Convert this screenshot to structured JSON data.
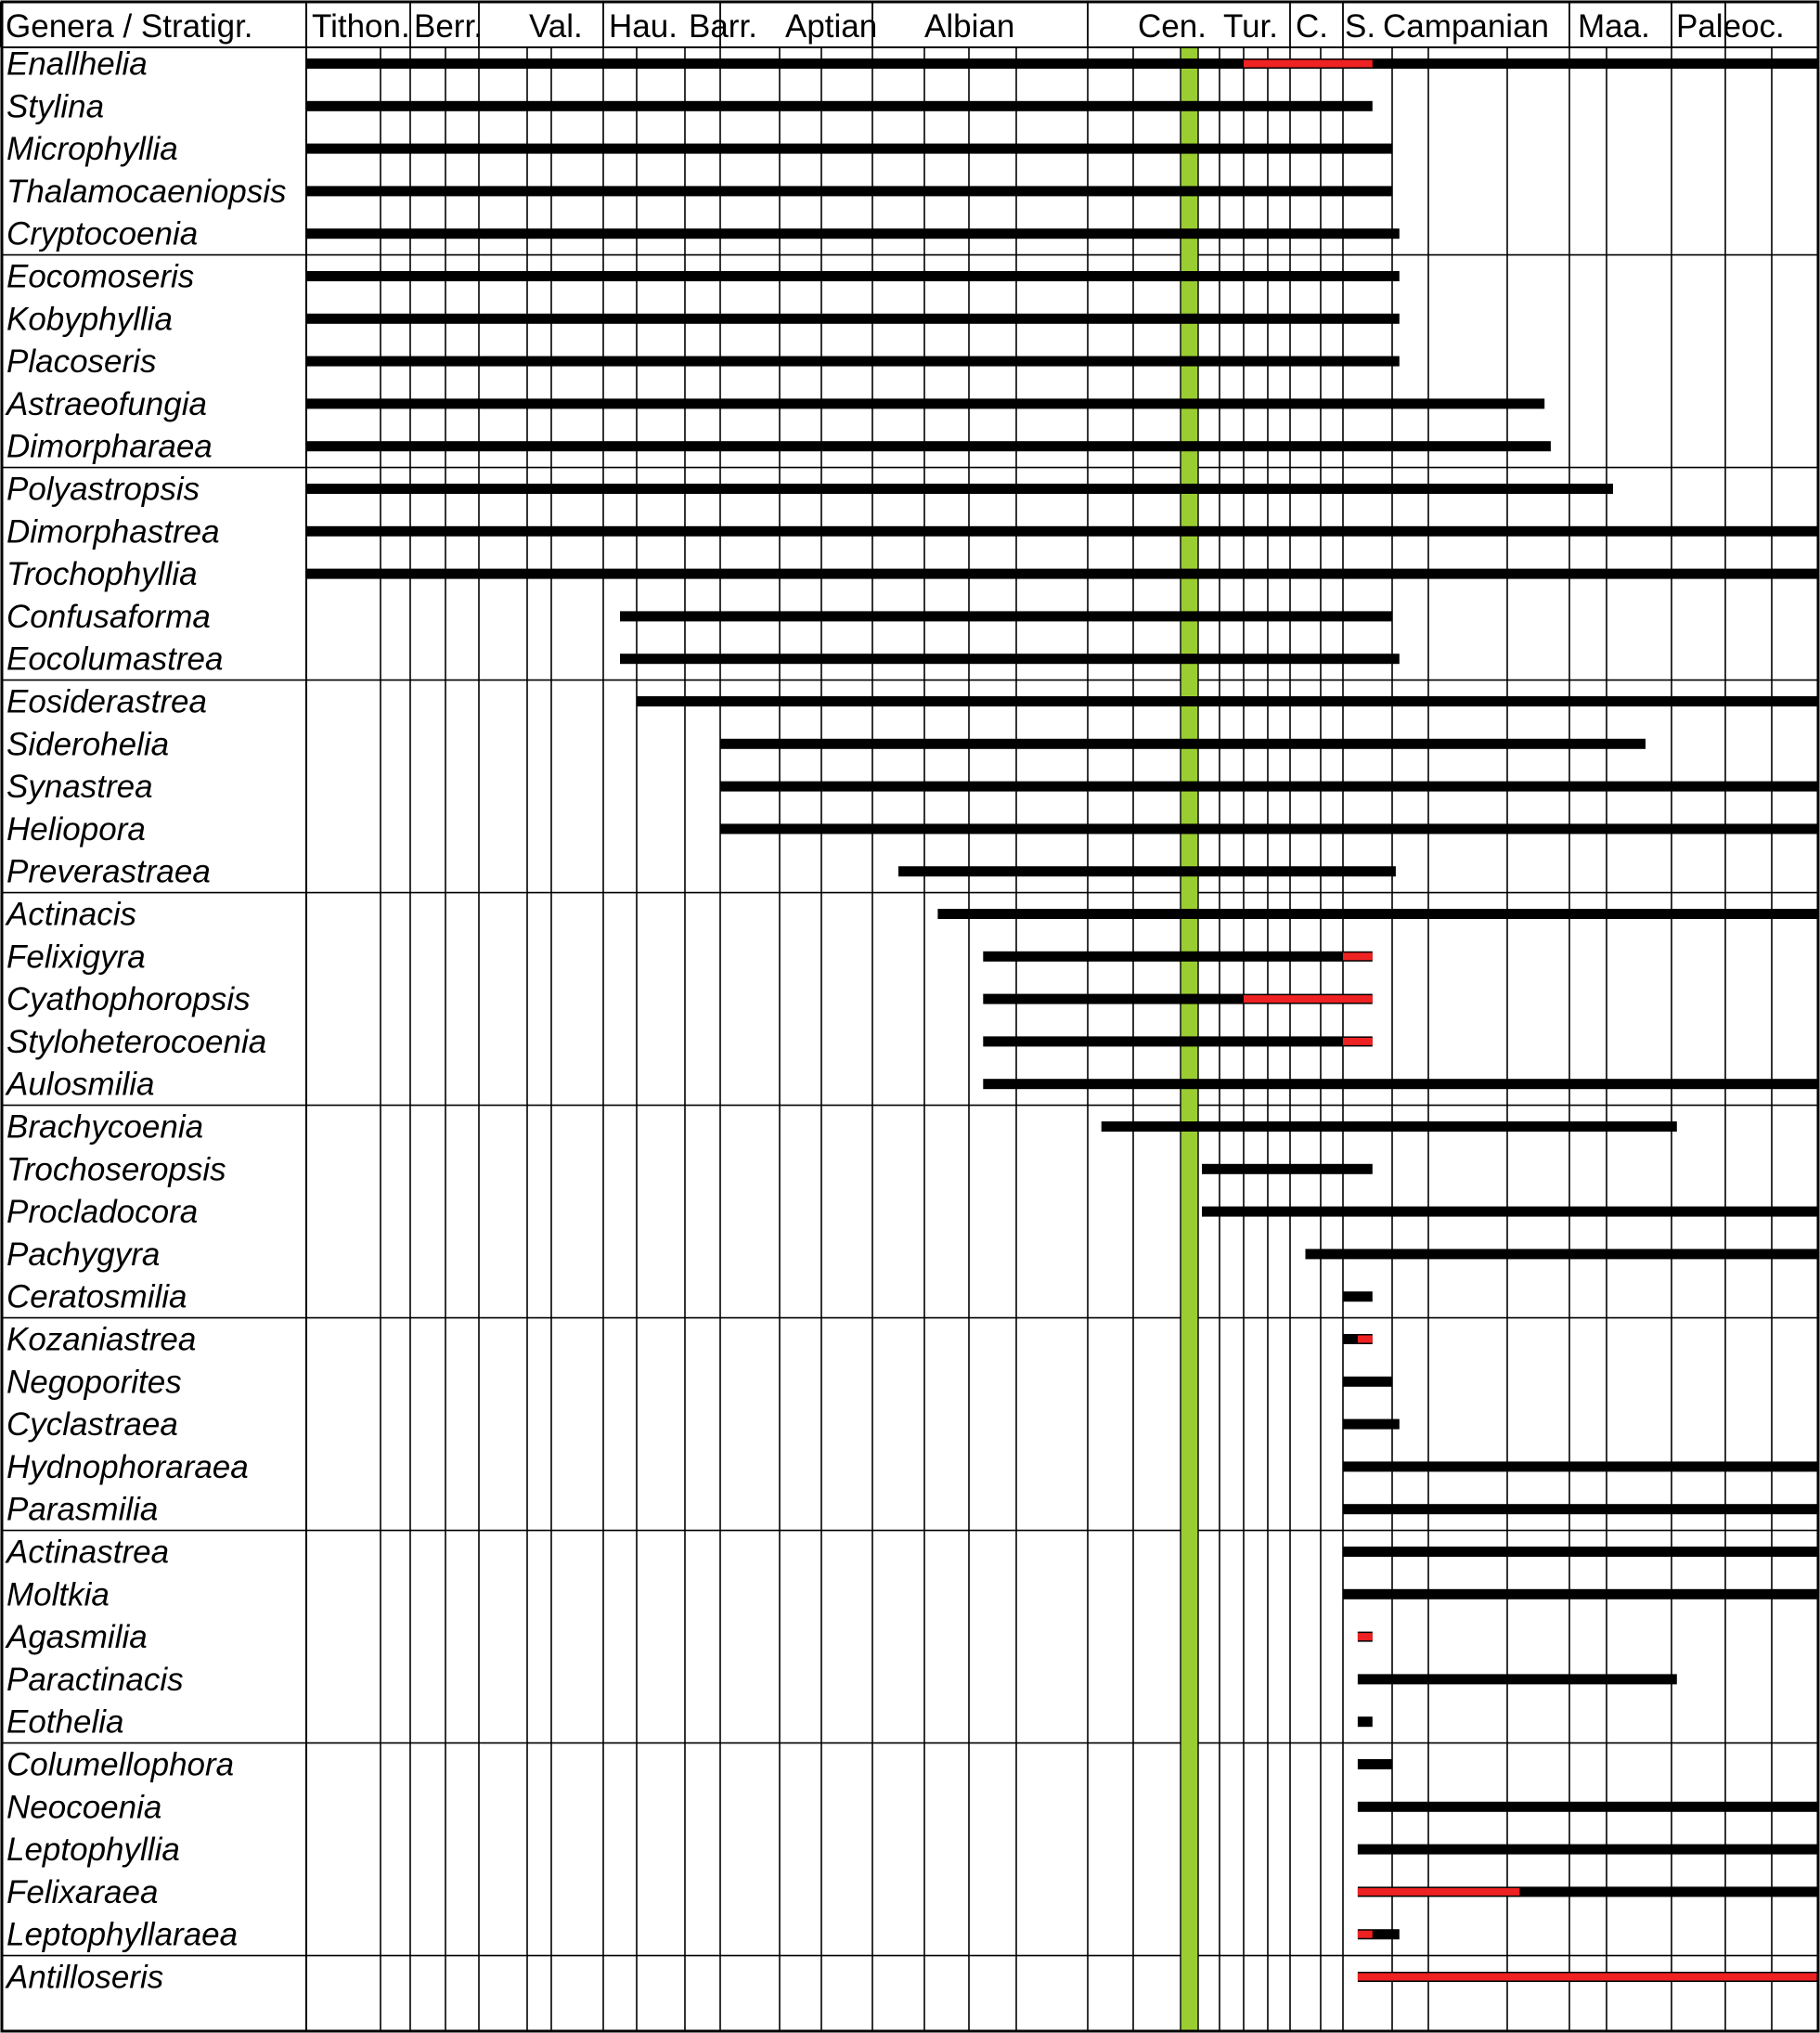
{
  "chart_data": {
    "type": "range-chart",
    "header_label": "Genera / Stratigr.",
    "stages": [
      "Tithon.",
      "Berr.",
      "Val.",
      "Hau.",
      "Barr.",
      "Aptian",
      "Albian",
      "Cen.",
      "Tur.",
      "C.",
      "S.",
      "Campanian",
      "Maa.",
      "Paleoc."
    ],
    "stage_sub_columns": [
      2,
      2,
      3,
      3,
      3,
      4,
      6,
      2,
      4,
      2,
      1,
      6,
      3,
      4
    ],
    "highlight_stage": "Cen.",
    "colors": {
      "range": "#000000",
      "uncertain_range": "#ee2222",
      "highlight": "#9acd32",
      "grid": "#000000"
    },
    "group_size": 5,
    "genera": [
      {
        "name": "Enallhelia",
        "start": 0,
        "end": 37,
        "red_start": 21,
        "red_end": 25.6
      },
      {
        "name": "Stylina",
        "start": 0,
        "end": 25.6
      },
      {
        "name": "Microphyllia",
        "start": 0,
        "end": 26
      },
      {
        "name": "Thalamocaeniopsis",
        "start": 0,
        "end": 26
      },
      {
        "name": "Cryptocoenia",
        "start": 0,
        "end": 26.2
      },
      {
        "name": "Eocomoseris",
        "start": 0,
        "end": 26.2
      },
      {
        "name": "Kobyphyllia",
        "start": 0,
        "end": 26.2
      },
      {
        "name": "Placoseris",
        "start": 0,
        "end": 26.2
      },
      {
        "name": "Astraeofungia",
        "start": 0,
        "end": 28.6
      },
      {
        "name": "Dimorpharaea",
        "start": 0,
        "end": 28.7
      },
      {
        "name": "Polyastropsis",
        "start": 0,
        "end": 30.1
      },
      {
        "name": "Dimorphastrea",
        "start": 0,
        "end": 35.3
      },
      {
        "name": "Trochophyllia",
        "start": 0,
        "end": 38.5
      },
      {
        "name": "Confusaforma",
        "start": 7.5,
        "end": 26
      },
      {
        "name": "Eocolumastrea",
        "start": 7.5,
        "end": 26.2
      },
      {
        "name": "Eosiderastrea",
        "start": 8,
        "end": 35.3
      },
      {
        "name": "Siderohelia",
        "start": 10,
        "end": 30.6
      },
      {
        "name": "Synastrea",
        "start": 10,
        "end": 49
      },
      {
        "name": "Heliopora",
        "start": 10,
        "end": 49
      },
      {
        "name": "Preverastraea",
        "start": 13.5,
        "end": 26.1
      },
      {
        "name": "Actinacis",
        "start": 14.3,
        "end": 49
      },
      {
        "name": "Felixigyra",
        "start": 15.3,
        "end": 25.6,
        "red_start": 25,
        "red_end": 25.6
      },
      {
        "name": "Cyathophoropsis",
        "start": 15.3,
        "end": 25.6,
        "red_start": 21,
        "red_end": 25.6
      },
      {
        "name": "Styloheterocoenia",
        "start": 15.3,
        "end": 25.6,
        "red_start": 25,
        "red_end": 25.6
      },
      {
        "name": "Aulosmilia",
        "start": 15.3,
        "end": 49
      },
      {
        "name": "Brachycoenia",
        "start": 17.3,
        "end": 31.1
      },
      {
        "name": "Trochoseropsis",
        "start": 19.5,
        "end": 25.6
      },
      {
        "name": "Procladocora",
        "start": 19.5,
        "end": 41
      },
      {
        "name": "Pachygyra",
        "start": 23.5,
        "end": 49
      },
      {
        "name": "Ceratosmilia",
        "start": 25,
        "end": 25.6
      },
      {
        "name": "Kozaniastrea",
        "start": 25,
        "end": 25.6,
        "red_start": 25.3,
        "red_end": 25.6
      },
      {
        "name": "Negoporites",
        "start": 25,
        "end": 26
      },
      {
        "name": "Cyclastraea",
        "start": 25,
        "end": 26.2
      },
      {
        "name": "Hydnophoraraea",
        "start": 25,
        "end": 41
      },
      {
        "name": "Parasmilia",
        "start": 25,
        "end": 41
      },
      {
        "name": "Actinastrea",
        "start": 25,
        "end": 49
      },
      {
        "name": "Moltkia",
        "start": 25,
        "end": 49
      },
      {
        "name": "Agasmilia",
        "start": 25.3,
        "end": 25.6,
        "red_start": 25.3,
        "red_end": 25.6
      },
      {
        "name": "Paractinacis",
        "start": 25.3,
        "end": 31.1
      },
      {
        "name": "Eothelia",
        "start": 25.3,
        "end": 25.6
      },
      {
        "name": "Columellophora",
        "start": 25.3,
        "end": 26
      },
      {
        "name": "Neocoenia",
        "start": 25.3,
        "end": 38.5
      },
      {
        "name": "Leptophyllia",
        "start": 25.3,
        "end": 41
      },
      {
        "name": "Felixaraea",
        "start": 25.3,
        "end": 49,
        "red_start": 25.3,
        "red_end": 28.2
      },
      {
        "name": "Leptophyllaraea",
        "start": 25.3,
        "end": 26.2,
        "red_start": 25.3,
        "red_end": 25.6
      },
      {
        "name": "Antilloseris",
        "start": 25.3,
        "end": 49,
        "red_start": 25.3,
        "red_end": 48.6
      }
    ]
  }
}
